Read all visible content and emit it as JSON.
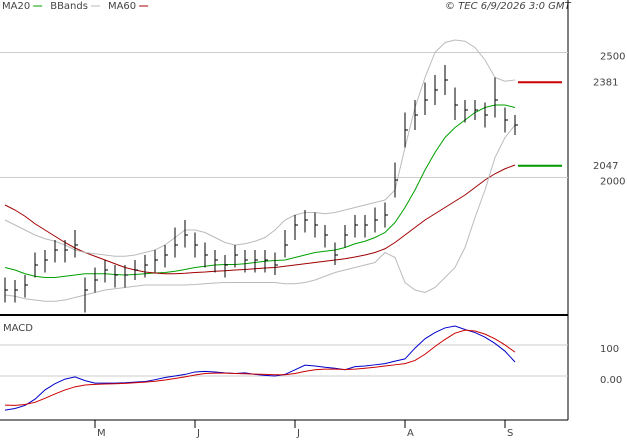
{
  "legend": [
    {
      "name": "MA20",
      "color": "#00a000"
    },
    {
      "name": "BBands",
      "color": "#bbbbbb"
    },
    {
      "name": "MA60",
      "color": "#a00000"
    }
  ],
  "copyright": "© TEC 6/9/2026 3:0 GMT",
  "chart_data": [
    {
      "type": "ohlc",
      "categories": [
        null,
        null,
        null,
        null,
        null,
        null,
        null,
        null,
        null,
        "M",
        null,
        null,
        null,
        null,
        null,
        null,
        null,
        null,
        null,
        "J",
        null,
        null,
        null,
        null,
        null,
        null,
        null,
        null,
        null,
        "J",
        null,
        null,
        null,
        null,
        null,
        null,
        null,
        null,
        null,
        null,
        "A",
        null,
        null,
        null,
        null,
        null,
        null,
        null,
        null,
        null,
        "S",
        null
      ],
      "close": [
        1550,
        1550,
        1570,
        1650,
        1670,
        1710,
        1710,
        1730,
        1550,
        1590,
        1630,
        1610,
        1610,
        1630,
        1650,
        1670,
        1690,
        1730,
        1770,
        1730,
        1690,
        1670,
        1650,
        1690,
        1670,
        1670,
        1670,
        1650,
        1730,
        1810,
        1830,
        1810,
        1770,
        1690,
        1770,
        1810,
        1810,
        1830,
        1850,
        1990,
        2190,
        2250,
        2310,
        2350,
        2390,
        2290,
        2270,
        2270,
        2250,
        2310,
        2230,
        2210
      ],
      "high": [
        1600,
        1590,
        1610,
        1700,
        1710,
        1750,
        1750,
        1790,
        1600,
        1640,
        1670,
        1650,
        1650,
        1670,
        1690,
        1710,
        1730,
        1800,
        1830,
        1780,
        1740,
        1710,
        1690,
        1730,
        1710,
        1710,
        1710,
        1700,
        1790,
        1850,
        1870,
        1860,
        1810,
        1740,
        1810,
        1850,
        1850,
        1880,
        1900,
        2060,
        2260,
        2310,
        2380,
        2410,
        2450,
        2360,
        2310,
        2310,
        2300,
        2400,
        2280,
        2250
      ],
      "low": [
        1500,
        1500,
        1520,
        1600,
        1620,
        1660,
        1660,
        1680,
        1460,
        1540,
        1580,
        1560,
        1560,
        1590,
        1600,
        1620,
        1640,
        1680,
        1720,
        1680,
        1640,
        1620,
        1600,
        1640,
        1620,
        1620,
        1620,
        1610,
        1680,
        1750,
        1780,
        1760,
        1720,
        1650,
        1720,
        1760,
        1760,
        1780,
        1800,
        1920,
        2120,
        2190,
        2250,
        2290,
        2330,
        2230,
        2220,
        2230,
        2200,
        2240,
        2180,
        2170
      ],
      "series": [
        {
          "name": "MA20",
          "color": "#00a000",
          "values": [
            1640,
            1630,
            1615,
            1605,
            1600,
            1600,
            1605,
            1610,
            1615,
            1615,
            1615,
            1612,
            1610,
            1612,
            1615,
            1618,
            1620,
            1625,
            1632,
            1640,
            1645,
            1650,
            1652,
            1652,
            1655,
            1660,
            1665,
            1668,
            1670,
            1680,
            1690,
            1700,
            1705,
            1710,
            1720,
            1735,
            1745,
            1760,
            1780,
            1820,
            1880,
            1950,
            2030,
            2100,
            2160,
            2200,
            2230,
            2260,
            2280,
            2290,
            2290,
            2280
          ]
        },
        {
          "name": "MA60",
          "color": "#a00000",
          "values": [
            1890,
            1870,
            1845,
            1815,
            1790,
            1765,
            1740,
            1718,
            1700,
            1685,
            1670,
            1655,
            1640,
            1630,
            1622,
            1618,
            1615,
            1615,
            1617,
            1620,
            1622,
            1625,
            1627,
            1630,
            1632,
            1635,
            1638,
            1640,
            1645,
            1650,
            1655,
            1660,
            1665,
            1670,
            1675,
            1682,
            1690,
            1700,
            1715,
            1740,
            1770,
            1800,
            1830,
            1855,
            1880,
            1905,
            1930,
            1960,
            1990,
            2015,
            2035,
            2050
          ]
        },
        {
          "name": "BBands",
          "color": "#bbbbbb",
          "upper": [
            1830,
            1810,
            1790,
            1770,
            1755,
            1745,
            1730,
            1710,
            1700,
            1695,
            1690,
            1685,
            1685,
            1690,
            1700,
            1710,
            1730,
            1760,
            1790,
            1790,
            1780,
            1760,
            1740,
            1730,
            1735,
            1745,
            1760,
            1790,
            1830,
            1850,
            1860,
            1860,
            1855,
            1860,
            1870,
            1880,
            1890,
            1900,
            1910,
            1950,
            2120,
            2280,
            2400,
            2500,
            2540,
            2550,
            2545,
            2520,
            2470,
            2400,
            2385,
            2390
          ],
          "lower": [
            1530,
            1525,
            1515,
            1510,
            1505,
            1505,
            1510,
            1520,
            1530,
            1540,
            1550,
            1555,
            1560,
            1565,
            1570,
            1570,
            1570,
            1570,
            1570,
            1572,
            1575,
            1578,
            1580,
            1580,
            1580,
            1580,
            1580,
            1580,
            1575,
            1575,
            1580,
            1590,
            1605,
            1620,
            1630,
            1640,
            1650,
            1660,
            1700,
            1680,
            1580,
            1550,
            1540,
            1560,
            1600,
            1640,
            1720,
            1840,
            1950,
            2080,
            2160,
            2210
          ]
        }
      ],
      "levels": [
        {
          "value": 2381,
          "color": "#cc0000"
        },
        {
          "value": 2047,
          "color": "#009900"
        }
      ],
      "ylim": [
        1450,
        2710
      ],
      "yticks": [
        2000,
        2500
      ],
      "grid": true,
      "bar_color": "#000000"
    },
    {
      "type": "line",
      "title": "MACD",
      "series": [
        {
          "color": "#0000cc",
          "values": [
            -110,
            -105,
            -95,
            -75,
            -45,
            -25,
            -10,
            -3,
            -15,
            -23,
            -23,
            -23,
            -22,
            -20,
            -18,
            -12,
            -5,
            0,
            5,
            13,
            15,
            13,
            10,
            8,
            10,
            5,
            2,
            0,
            5,
            20,
            35,
            32,
            28,
            25,
            20,
            30,
            32,
            36,
            40,
            48,
            55,
            90,
            120,
            140,
            155,
            161,
            150,
            140,
            125,
            105,
            80,
            45
          ]
        },
        {
          "color": "#cc0000",
          "values": [
            -94,
            -95,
            -92,
            -85,
            -72,
            -58,
            -45,
            -35,
            -29,
            -27,
            -26,
            -25,
            -24,
            -22,
            -20,
            -17,
            -13,
            -8,
            -3,
            3,
            8,
            9,
            9,
            8,
            7,
            6,
            5,
            4,
            4,
            8,
            15,
            20,
            22,
            22,
            21,
            22,
            25,
            28,
            32,
            36,
            40,
            50,
            70,
            95,
            118,
            138,
            148,
            145,
            135,
            120,
            100,
            77
          ]
        }
      ],
      "ylim": [
        -142,
        187
      ],
      "yticks": [
        {
          "value": 0,
          "label": "0.00"
        },
        100
      ],
      "grid": true
    }
  ]
}
